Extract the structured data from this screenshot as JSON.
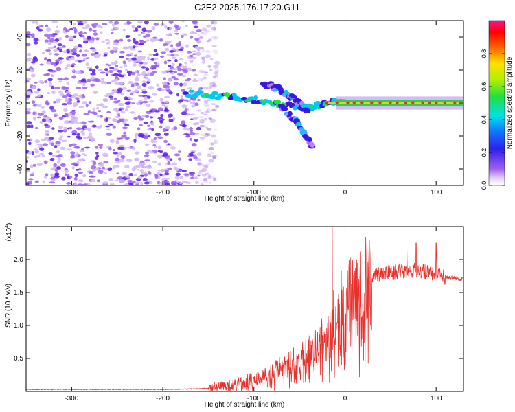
{
  "chart_data": [
    {
      "type": "heatmap",
      "title": "C2E2.2025.176.17.20.G11",
      "xlabel": "Height of straight line (km)",
      "ylabel": "Frequency (Hz)",
      "xlim": [
        -350,
        130
      ],
      "ylim": [
        -50,
        50
      ],
      "x_ticks": [
        -300,
        -200,
        -100,
        0,
        100
      ],
      "y_ticks": [
        40,
        20,
        0,
        -20,
        -40
      ],
      "colorbar": {
        "label": "Normalized spectral amplitude",
        "ticks": [
          "0.0",
          "0.2",
          "0.4",
          "0.6",
          "0.8"
        ],
        "range": [
          0,
          1
        ],
        "colormap": "rainbow (violet-blue-cyan-green-yellow-red-magenta)"
      },
      "features": {
        "noise_region_x": [
          -350,
          -140
        ],
        "signal_start_x": -175,
        "signal_center_frequency": 0,
        "branch_tracks": [
          {
            "x": [
              -175,
              -130,
              -100,
              -70,
              -40,
              -20,
              0
            ],
            "y": [
              6,
              4,
              2,
              -1,
              -3,
              0,
              1
            ]
          },
          {
            "x": [
              -90,
              -70,
              -55,
              -40
            ],
            "y": [
              12,
              8,
              2,
              -5
            ]
          },
          {
            "x": [
              -70,
              -55,
              -45,
              -35
            ],
            "y": [
              -3,
              -10,
              -18,
              -27
            ]
          }
        ],
        "steady_line_x": [
          0,
          130
        ]
      }
    },
    {
      "type": "line",
      "xlabel": "Height of straight line (km)",
      "ylabel": "SNR (10 * v/v)",
      "y_multiplier": "(x10^4)",
      "multiplier_base": "(x10",
      "multiplier_exp": "4",
      "xlim": [
        -350,
        130
      ],
      "ylim": [
        0,
        2.5
      ],
      "x_ticks": [
        -300,
        -200,
        -100,
        0,
        100
      ],
      "y_ticks": [
        "0.5",
        "1.0",
        "1.5",
        "2.0"
      ],
      "series_color": "#e8322d",
      "x": [
        -350,
        -300,
        -250,
        -200,
        -160,
        -140,
        -120,
        -100,
        -80,
        -60,
        -40,
        -20,
        -14,
        -10,
        0,
        10,
        20,
        30,
        40,
        50,
        60,
        70,
        80,
        90,
        100,
        110,
        120,
        130
      ],
      "y": [
        0.03,
        0.03,
        0.03,
        0.03,
        0.04,
        0.06,
        0.1,
        0.18,
        0.3,
        0.42,
        0.58,
        1.0,
        1.2,
        1.3,
        1.35,
        1.55,
        1.68,
        1.75,
        1.78,
        1.8,
        1.82,
        1.82,
        1.84,
        1.8,
        1.78,
        1.74,
        1.72,
        1.7
      ],
      "peaks": [
        {
          "x": -14,
          "y": 2.5
        },
        {
          "x": 78,
          "y": 2.25
        },
        {
          "x": 100,
          "y": 2.25
        },
        {
          "x": 68,
          "y": 2.15
        }
      ]
    }
  ]
}
